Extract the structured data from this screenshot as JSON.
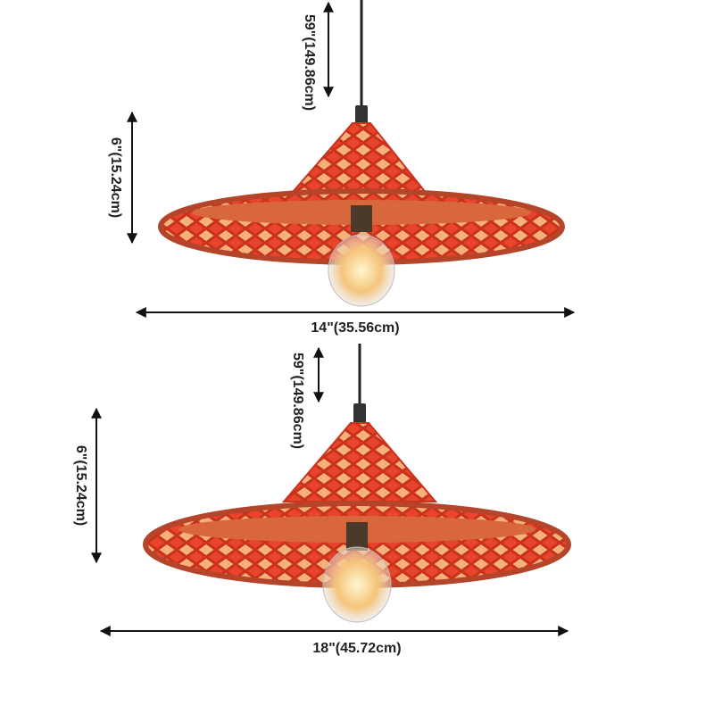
{
  "lamps": [
    {
      "cord_length": "59\"(149.86cm)",
      "height": "6\"(15.24cm)",
      "width": "14\"(35.56cm)"
    },
    {
      "cord_length": "59\"(149.86cm)",
      "height": "6\"(15.24cm)",
      "width": "18\"(45.72cm)"
    }
  ]
}
